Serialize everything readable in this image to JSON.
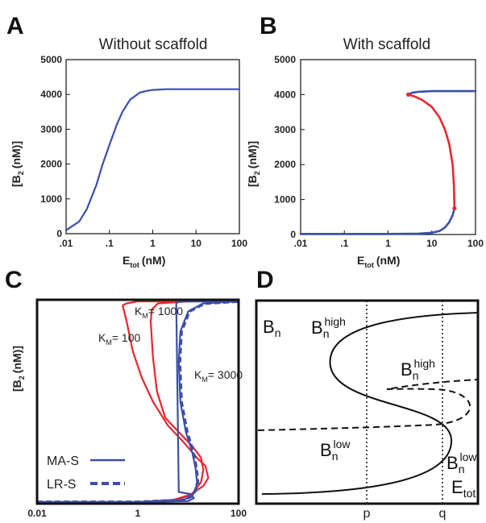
{
  "chart_data": [
    {
      "panel": "A",
      "type": "line",
      "title": "Without scaffold",
      "xlabel": "E",
      "xlabel_sub": "tot",
      "xlabel_unit": "(nM)",
      "ylabel": "[B",
      "ylabel_sub": "2",
      "ylabel_unit": "(nM)]",
      "xscale": "log",
      "xlim": [
        0.01,
        100
      ],
      "ylim": [
        0,
        5000
      ],
      "x_tick_labels": [
        ".01",
        ".1",
        "1",
        "10",
        "100"
      ],
      "y_tick_labels": [
        "0",
        "1000",
        "2000",
        "3000",
        "4000",
        "5000"
      ],
      "series": [
        {
          "color": "#3b4fa8",
          "style": "solid",
          "x": [
            0.01,
            0.02,
            0.03,
            0.05,
            0.07,
            0.1,
            0.15,
            0.2,
            0.3,
            0.5,
            0.7,
            1,
            2,
            5,
            10,
            100
          ],
          "y": [
            100,
            350,
            700,
            1400,
            2000,
            2550,
            3150,
            3500,
            3850,
            4050,
            4100,
            4130,
            4150,
            4150,
            4150,
            4150
          ]
        }
      ]
    },
    {
      "panel": "B",
      "type": "line",
      "title": "With scaffold",
      "xlabel": "E",
      "xlabel_sub": "tot",
      "xlabel_unit": "(nM)",
      "ylabel": "[B",
      "ylabel_sub": "2",
      "ylabel_unit": "(nM)]",
      "xscale": "log",
      "xlim": [
        0.01,
        100
      ],
      "ylim": [
        0,
        5000
      ],
      "x_tick_labels": [
        ".01",
        ".1",
        "1",
        "10",
        "100"
      ],
      "y_tick_labels": [
        "0",
        "1000",
        "2000",
        "3000",
        "4000",
        "5000"
      ],
      "series": [
        {
          "color": "#3b4fa8",
          "style": "solid",
          "x": [
            0.01,
            0.1,
            1,
            5,
            10,
            15,
            20,
            25,
            30,
            33
          ],
          "y": [
            15,
            15,
            17,
            25,
            50,
            100,
            200,
            350,
            550,
            750
          ]
        },
        {
          "color": "#e8262f",
          "style": "solid",
          "x": [
            33,
            32,
            30,
            25,
            20,
            15,
            10,
            6,
            4,
            2.9
          ],
          "y": [
            750,
            1400,
            2000,
            2600,
            3000,
            3350,
            3650,
            3850,
            3950,
            4000
          ]
        },
        {
          "color": "#3b4fa8",
          "style": "solid",
          "x": [
            2.9,
            3.5,
            5,
            10,
            30,
            100
          ],
          "y": [
            4000,
            4050,
            4080,
            4100,
            4100,
            4100
          ]
        }
      ]
    },
    {
      "panel": "C",
      "type": "line",
      "xlabel": "",
      "ylabel": "[B",
      "ylabel_sub": "2",
      "ylabel_unit": "(nM)]",
      "xscale": "log",
      "xlim": [
        0.01,
        100
      ],
      "ylim": [
        0,
        1
      ],
      "x_tick_labels": [
        "0.01",
        "1",
        "100"
      ],
      "annotations": [
        {
          "text": "K",
          "sub": "M",
          "rest": "= 100"
        },
        {
          "text": "K",
          "sub": "M",
          "rest": "= 1000"
        },
        {
          "text": "K",
          "sub": "M",
          "rest": "= 3000"
        }
      ],
      "legend": [
        {
          "label": "MA-S",
          "color": "#3b4fa8",
          "style": "solid"
        },
        {
          "label": "LR-S",
          "color": "#3b4fa8",
          "style": "dashed"
        }
      ],
      "series": [
        {
          "color": "#e8262f",
          "style": "solid",
          "x": [
            0.01,
            1,
            5,
            10,
            20,
            25,
            22,
            15,
            8,
            4,
            2,
            1.2,
            0.8,
            0.6,
            0.5,
            0.6,
            1,
            10,
            100
          ],
          "y": [
            0.0,
            0.0,
            0.01,
            0.03,
            0.08,
            0.12,
            0.18,
            0.22,
            0.3,
            0.38,
            0.5,
            0.62,
            0.75,
            0.9,
            0.98,
            0.99,
            1.0,
            1.0,
            1.0
          ]
        },
        {
          "color": "#e8262f",
          "style": "solid",
          "x": [
            0.01,
            1,
            5,
            12,
            18,
            20,
            18,
            12,
            7,
            3.5,
            2.4,
            2,
            1.8,
            1.9,
            2.5,
            10,
            100
          ],
          "y": [
            0.0,
            0.0,
            0.01,
            0.04,
            0.1,
            0.16,
            0.22,
            0.28,
            0.34,
            0.42,
            0.55,
            0.72,
            0.9,
            0.96,
            0.99,
            1.0,
            1.0
          ]
        },
        {
          "color": "#3b4fa8",
          "style": "solid",
          "x": [
            0.01,
            1,
            8,
            12,
            14,
            15,
            14,
            12,
            9,
            7,
            6.5,
            7,
            10,
            20,
            100
          ],
          "y": [
            0.0,
            0.0,
            0.01,
            0.03,
            0.06,
            0.1,
            0.17,
            0.25,
            0.35,
            0.5,
            0.7,
            0.85,
            0.95,
            0.99,
            1.0
          ]
        },
        {
          "color": "#3b4fa8",
          "style": "dashed",
          "x": [
            0.01,
            1,
            8,
            12,
            14,
            15.5,
            14.5,
            12.5,
            9.5,
            7.3,
            6.8,
            7.3,
            10.5,
            21,
            100
          ],
          "y": [
            0.0,
            0.0,
            0.01,
            0.03,
            0.06,
            0.1,
            0.17,
            0.25,
            0.35,
            0.5,
            0.7,
            0.85,
            0.95,
            0.99,
            1.0
          ]
        },
        {
          "color": "#3b4fa8",
          "style": "solid",
          "x": [
            0.01,
            1,
            10,
            13,
            11,
            6.5,
            5.8,
            6.5,
            10,
            100
          ],
          "y": [
            0.0,
            0.0,
            0.005,
            0.02,
            0.04,
            0.05,
            0.99,
            1.0,
            1.0,
            1.0
          ]
        }
      ]
    },
    {
      "panel": "D",
      "type": "line",
      "xlabel": "",
      "ylabel": "",
      "x_tick_labels": [
        "p",
        "q"
      ],
      "labels": {
        "bn": "B",
        "bn_sub": "n",
        "etot": "E",
        "etot_sub": "tot",
        "high": "high",
        "low": "low"
      },
      "series": [
        {
          "name": "solid branch",
          "color": "#111111",
          "style": "solid"
        },
        {
          "name": "dashed branch",
          "color": "#111111",
          "style": "dashed"
        }
      ]
    }
  ]
}
